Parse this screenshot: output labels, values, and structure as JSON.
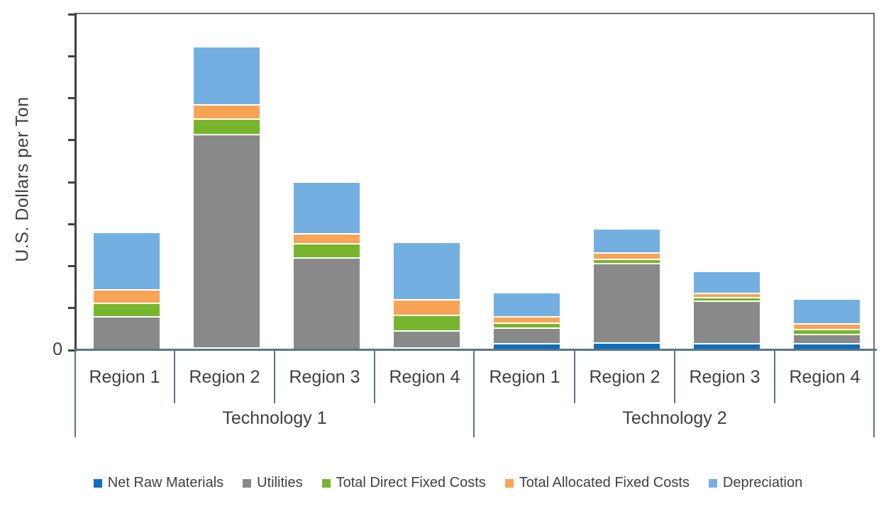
{
  "y_axis": {
    "label": "U.S. Dollars per Ton",
    "zero_label": "0"
  },
  "groups": {
    "group1": "Technology 1",
    "group2": "Technology 2"
  },
  "chart_data": {
    "type": "bar",
    "stacked": true,
    "ylabel": "U.S. Dollars per Ton",
    "ylim": [
      0,
      800
    ],
    "ytick_interval": 100,
    "ytick_labels_shown": [
      "0"
    ],
    "grid": false,
    "legend_position": "bottom",
    "group_labels": [
      "Technology 1",
      "Technology 2"
    ],
    "categories": [
      "Region 1",
      "Region 2",
      "Region 3",
      "Region 4",
      "Region 1",
      "Region 2",
      "Region 3",
      "Region 4"
    ],
    "category_group_index": [
      0,
      0,
      0,
      0,
      1,
      1,
      1,
      1
    ],
    "series": [
      {
        "name": "Net Raw Materials",
        "color": "#0d6ebe",
        "values": [
          0,
          4,
          0,
          4,
          13,
          15,
          14,
          14
        ]
      },
      {
        "name": "Utilities",
        "color": "#898989",
        "values": [
          77,
          507,
          217,
          40,
          37,
          190,
          100,
          22
        ]
      },
      {
        "name": "Total Direct Fixed Costs",
        "color": "#77b62c",
        "values": [
          32,
          37,
          34,
          37,
          12,
          10,
          9,
          11
        ]
      },
      {
        "name": "Total Allocated Fixed Costs",
        "color": "#f8a455",
        "values": [
          33,
          34,
          24,
          37,
          15,
          15,
          11,
          13
        ]
      },
      {
        "name": "Depreciation",
        "color": "#74afe1",
        "values": [
          134,
          136,
          120,
          134,
          55,
          54,
          49,
          56
        ]
      }
    ],
    "note": "Only the 0 gridline is labeled on the y-axis; values are in axis units of 100 per tick, estimated from bar heights."
  },
  "legend": {
    "items": [
      {
        "label": "Net Raw Materials",
        "color": "#0d6ebe"
      },
      {
        "label": "Utilities",
        "color": "#898989"
      },
      {
        "label": "Total Direct Fixed Costs",
        "color": "#77b62c"
      },
      {
        "label": "Total Allocated Fixed Costs",
        "color": "#f8a455"
      },
      {
        "label": "Depreciation",
        "color": "#74afe1"
      }
    ]
  },
  "layout_colors": {
    "axis_line": "#404040",
    "plot_border": "#6e6e6e",
    "table_line": "#5a7585",
    "text": "#404040"
  }
}
